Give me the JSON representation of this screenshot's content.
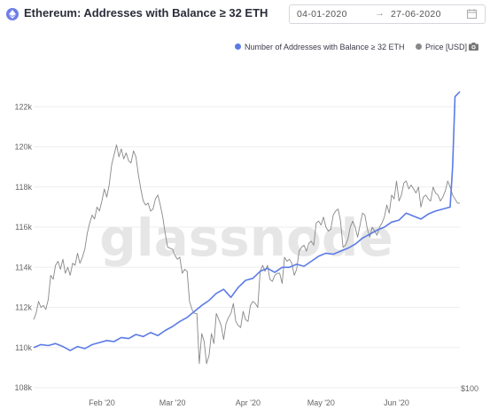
{
  "header": {
    "title": "Ethereum: Addresses with Balance ≥ 32 ETH",
    "date_start": "04-01-2020",
    "date_arrow": "→",
    "date_end": "27-06-2020",
    "icon": "ethereum-icon",
    "calendar_icon": "calendar-icon"
  },
  "watermark": "glassnode",
  "camera_icon": "camera-icon",
  "colors": {
    "addresses": "#5b7be6",
    "price": "#888888",
    "grid": "#eeeeee",
    "watermark": "#e6e6e6"
  },
  "chart_data": {
    "type": "line",
    "title": "Ethereum: Addresses with Balance ≥ 32 ETH",
    "x_range": [
      "2020-01-04",
      "2020-06-27"
    ],
    "x_ticks": [
      "Feb '20",
      "Mar '20",
      "Apr '20",
      "May '20",
      "Jun '20"
    ],
    "y_left": {
      "min": 108000,
      "max": 124000,
      "ticks": [
        "108k",
        "110k",
        "112k",
        "114k",
        "116k",
        "118k",
        "120k",
        "122k"
      ]
    },
    "y_right": {
      "ticks": [
        "$100"
      ]
    },
    "grid": "horizontal",
    "legend_position": "top-right",
    "series": [
      {
        "name": "Number of Addresses with Balance ≥ 32 ETH",
        "axis": "left",
        "points": [
          [
            "2020-01-04",
            110000
          ],
          [
            "2020-01-07",
            110150
          ],
          [
            "2020-01-10",
            110100
          ],
          [
            "2020-01-13",
            110200
          ],
          [
            "2020-01-16",
            110050
          ],
          [
            "2020-01-19",
            109850
          ],
          [
            "2020-01-22",
            110050
          ],
          [
            "2020-01-25",
            109950
          ],
          [
            "2020-01-28",
            110150
          ],
          [
            "2020-01-31",
            110250
          ],
          [
            "2020-02-03",
            110350
          ],
          [
            "2020-02-06",
            110300
          ],
          [
            "2020-02-09",
            110500
          ],
          [
            "2020-02-12",
            110450
          ],
          [
            "2020-02-15",
            110650
          ],
          [
            "2020-02-18",
            110550
          ],
          [
            "2020-02-21",
            110750
          ],
          [
            "2020-02-24",
            110600
          ],
          [
            "2020-02-27",
            110850
          ],
          [
            "2020-03-01",
            111050
          ],
          [
            "2020-03-04",
            111300
          ],
          [
            "2020-03-07",
            111500
          ],
          [
            "2020-03-10",
            111800
          ],
          [
            "2020-03-13",
            112100
          ],
          [
            "2020-03-16",
            112350
          ],
          [
            "2020-03-19",
            112700
          ],
          [
            "2020-03-22",
            112900
          ],
          [
            "2020-03-25",
            112500
          ],
          [
            "2020-03-28",
            113000
          ],
          [
            "2020-03-31",
            113350
          ],
          [
            "2020-04-03",
            113450
          ],
          [
            "2020-04-06",
            113800
          ],
          [
            "2020-04-09",
            113950
          ],
          [
            "2020-04-12",
            113750
          ],
          [
            "2020-04-15",
            114000
          ],
          [
            "2020-04-18",
            114000
          ],
          [
            "2020-04-21",
            114150
          ],
          [
            "2020-04-24",
            114050
          ],
          [
            "2020-04-27",
            114300
          ],
          [
            "2020-04-30",
            114550
          ],
          [
            "2020-05-03",
            114700
          ],
          [
            "2020-05-06",
            114650
          ],
          [
            "2020-05-09",
            114800
          ],
          [
            "2020-05-12",
            114950
          ],
          [
            "2020-05-15",
            115150
          ],
          [
            "2020-05-18",
            115450
          ],
          [
            "2020-05-21",
            115650
          ],
          [
            "2020-05-24",
            115850
          ],
          [
            "2020-05-27",
            116000
          ],
          [
            "2020-05-30",
            116250
          ],
          [
            "2020-06-02",
            116350
          ],
          [
            "2020-06-05",
            116700
          ],
          [
            "2020-06-08",
            116550
          ],
          [
            "2020-06-11",
            116400
          ],
          [
            "2020-06-14",
            116650
          ],
          [
            "2020-06-17",
            116800
          ],
          [
            "2020-06-20",
            116900
          ],
          [
            "2020-06-23",
            117000
          ],
          [
            "2020-06-24",
            119000
          ],
          [
            "2020-06-25",
            122500
          ],
          [
            "2020-06-27",
            122750
          ]
        ]
      },
      {
        "name": "Price [USD]",
        "axis": "right",
        "points": [
          [
            "2020-01-04",
            111400
          ],
          [
            "2020-01-05",
            111700
          ],
          [
            "2020-01-06",
            112300
          ],
          [
            "2020-01-07",
            112000
          ],
          [
            "2020-01-08",
            112100
          ],
          [
            "2020-01-09",
            111900
          ],
          [
            "2020-01-10",
            112400
          ],
          [
            "2020-01-11",
            113600
          ],
          [
            "2020-01-12",
            113400
          ],
          [
            "2020-01-13",
            114100
          ],
          [
            "2020-01-14",
            114300
          ],
          [
            "2020-01-15",
            113900
          ],
          [
            "2020-01-16",
            114400
          ],
          [
            "2020-01-17",
            113700
          ],
          [
            "2020-01-18",
            114000
          ],
          [
            "2020-01-19",
            113600
          ],
          [
            "2020-01-20",
            114200
          ],
          [
            "2020-01-21",
            114100
          ],
          [
            "2020-01-22",
            114700
          ],
          [
            "2020-01-23",
            114200
          ],
          [
            "2020-01-24",
            114500
          ],
          [
            "2020-01-25",
            114900
          ],
          [
            "2020-01-26",
            115700
          ],
          [
            "2020-01-27",
            116200
          ],
          [
            "2020-01-28",
            116600
          ],
          [
            "2020-01-29",
            116400
          ],
          [
            "2020-01-30",
            117000
          ],
          [
            "2020-01-31",
            116800
          ],
          [
            "2020-02-01",
            117300
          ],
          [
            "2020-02-02",
            117900
          ],
          [
            "2020-02-03",
            117500
          ],
          [
            "2020-02-04",
            118100
          ],
          [
            "2020-02-05",
            119100
          ],
          [
            "2020-02-06",
            119600
          ],
          [
            "2020-02-07",
            120100
          ],
          [
            "2020-02-08",
            119500
          ],
          [
            "2020-02-09",
            119900
          ],
          [
            "2020-02-10",
            119400
          ],
          [
            "2020-02-11",
            119700
          ],
          [
            "2020-02-12",
            119300
          ],
          [
            "2020-02-13",
            119200
          ],
          [
            "2020-02-14",
            119800
          ],
          [
            "2020-02-15",
            119500
          ],
          [
            "2020-02-16",
            118600
          ],
          [
            "2020-02-17",
            117900
          ],
          [
            "2020-02-18",
            117300
          ],
          [
            "2020-02-19",
            117100
          ],
          [
            "2020-02-20",
            117200
          ],
          [
            "2020-02-21",
            116800
          ],
          [
            "2020-02-22",
            116900
          ],
          [
            "2020-02-23",
            117400
          ],
          [
            "2020-02-24",
            117600
          ],
          [
            "2020-02-25",
            117100
          ],
          [
            "2020-02-26",
            116500
          ],
          [
            "2020-02-27",
            115700
          ],
          [
            "2020-02-28",
            115000
          ],
          [
            "2020-03-01",
            114900
          ],
          [
            "2020-03-02",
            114600
          ],
          [
            "2020-03-03",
            114400
          ],
          [
            "2020-03-04",
            114500
          ],
          [
            "2020-03-05",
            113700
          ],
          [
            "2020-03-06",
            113900
          ],
          [
            "2020-03-07",
            113800
          ],
          [
            "2020-03-08",
            112300
          ],
          [
            "2020-03-09",
            111900
          ],
          [
            "2020-03-10",
            111700
          ],
          [
            "2020-03-11",
            111700
          ],
          [
            "2020-03-12",
            109200
          ],
          [
            "2020-03-13",
            110700
          ],
          [
            "2020-03-14",
            110300
          ],
          [
            "2020-03-15",
            109200
          ],
          [
            "2020-03-16",
            109600
          ],
          [
            "2020-03-17",
            110700
          ],
          [
            "2020-03-18",
            110200
          ],
          [
            "2020-03-19",
            111700
          ],
          [
            "2020-03-20",
            111400
          ],
          [
            "2020-03-21",
            111100
          ],
          [
            "2020-03-22",
            110400
          ],
          [
            "2020-03-23",
            111200
          ],
          [
            "2020-03-24",
            111500
          ],
          [
            "2020-03-25",
            111700
          ],
          [
            "2020-03-26",
            112200
          ],
          [
            "2020-03-27",
            111300
          ],
          [
            "2020-03-28",
            111100
          ],
          [
            "2020-03-29",
            111000
          ],
          [
            "2020-03-30",
            111800
          ],
          [
            "2020-03-31",
            111400
          ],
          [
            "2020-04-01",
            111300
          ],
          [
            "2020-04-02",
            112100
          ],
          [
            "2020-04-03",
            112300
          ],
          [
            "2020-04-04",
            112200
          ],
          [
            "2020-04-05",
            112000
          ],
          [
            "2020-04-06",
            113800
          ],
          [
            "2020-04-07",
            114100
          ],
          [
            "2020-04-08",
            113800
          ],
          [
            "2020-04-09",
            114100
          ],
          [
            "2020-04-10",
            113400
          ],
          [
            "2020-04-11",
            113300
          ],
          [
            "2020-04-12",
            113600
          ],
          [
            "2020-04-13",
            113700
          ],
          [
            "2020-04-14",
            113700
          ],
          [
            "2020-04-15",
            113200
          ],
          [
            "2020-04-16",
            114500
          ],
          [
            "2020-04-17",
            114300
          ],
          [
            "2020-04-18",
            114400
          ],
          [
            "2020-04-19",
            114200
          ],
          [
            "2020-04-20",
            113600
          ],
          [
            "2020-04-21",
            113900
          ],
          [
            "2020-04-22",
            114800
          ],
          [
            "2020-04-23",
            115000
          ],
          [
            "2020-04-24",
            115100
          ],
          [
            "2020-04-25",
            114800
          ],
          [
            "2020-04-26",
            115200
          ],
          [
            "2020-04-27",
            115300
          ],
          [
            "2020-04-28",
            115100
          ],
          [
            "2020-04-29",
            116200
          ],
          [
            "2020-04-30",
            116300
          ],
          [
            "2020-05-01",
            116100
          ],
          [
            "2020-05-02",
            116500
          ],
          [
            "2020-05-03",
            116000
          ],
          [
            "2020-05-04",
            115800
          ],
          [
            "2020-05-05",
            115900
          ],
          [
            "2020-05-06",
            116600
          ],
          [
            "2020-05-07",
            116800
          ],
          [
            "2020-05-08",
            116900
          ],
          [
            "2020-05-09",
            116300
          ],
          [
            "2020-05-10",
            115000
          ],
          [
            "2020-05-11",
            115100
          ],
          [
            "2020-05-12",
            115400
          ],
          [
            "2020-05-13",
            116000
          ],
          [
            "2020-05-14",
            116300
          ],
          [
            "2020-05-15",
            116000
          ],
          [
            "2020-05-16",
            115500
          ],
          [
            "2020-05-17",
            116100
          ],
          [
            "2020-05-18",
            116700
          ],
          [
            "2020-05-19",
            116600
          ],
          [
            "2020-05-20",
            115900
          ],
          [
            "2020-05-21",
            115500
          ],
          [
            "2020-05-22",
            116000
          ],
          [
            "2020-05-23",
            115800
          ],
          [
            "2020-05-24",
            115600
          ],
          [
            "2020-05-25",
            116000
          ],
          [
            "2020-05-26",
            116200
          ],
          [
            "2020-05-27",
            116500
          ],
          [
            "2020-05-28",
            117100
          ],
          [
            "2020-05-29",
            116700
          ],
          [
            "2020-05-30",
            117600
          ],
          [
            "2020-05-31",
            117400
          ],
          [
            "2020-06-01",
            118300
          ],
          [
            "2020-06-02",
            117300
          ],
          [
            "2020-06-03",
            117600
          ],
          [
            "2020-06-04",
            118200
          ],
          [
            "2020-06-05",
            118300
          ],
          [
            "2020-06-06",
            117900
          ],
          [
            "2020-06-07",
            118100
          ],
          [
            "2020-06-08",
            117900
          ],
          [
            "2020-06-09",
            117700
          ],
          [
            "2020-06-10",
            118000
          ],
          [
            "2020-06-11",
            117000
          ],
          [
            "2020-06-12",
            117500
          ],
          [
            "2020-06-13",
            117600
          ],
          [
            "2020-06-14",
            117400
          ],
          [
            "2020-06-15",
            117300
          ],
          [
            "2020-06-16",
            118000
          ],
          [
            "2020-06-17",
            117700
          ],
          [
            "2020-06-18",
            117600
          ],
          [
            "2020-06-19",
            117300
          ],
          [
            "2020-06-20",
            117500
          ],
          [
            "2020-06-21",
            117800
          ],
          [
            "2020-06-22",
            118300
          ],
          [
            "2020-06-23",
            118000
          ],
          [
            "2020-06-24",
            117600
          ],
          [
            "2020-06-25",
            117400
          ],
          [
            "2020-06-26",
            117200
          ],
          [
            "2020-06-27",
            117200
          ]
        ]
      }
    ]
  }
}
